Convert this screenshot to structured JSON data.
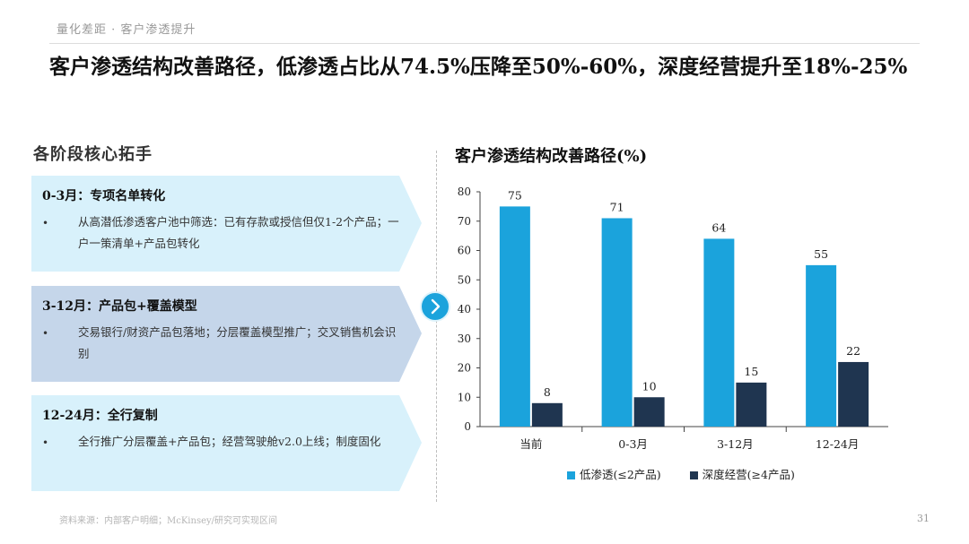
{
  "header": {
    "breadcrumb": "量化差距 · 客户渗透提升",
    "headline": "客户渗透结构改善路径，低渗透占比从74.5%压降至50%-60%，深度经营提升至18%-25%"
  },
  "left": {
    "section_title": "各阶段核心拓手",
    "bullet": "•",
    "stages": [
      {
        "title": "0-3月：专项名单转化",
        "text": "从高潜低渗透客户池中筛选：已有存款或授信但仅1-2个产品；一户一策清单+产品包转化",
        "color": "#d8f1fb"
      },
      {
        "title": "3-12月：产品包+覆盖模型",
        "text": "交易银行/财资产品包落地；分层覆盖模型推广；交叉销售机会识别",
        "color": "#c5d6ea"
      },
      {
        "title": "12-24月：全行复制",
        "text": "全行推广分层覆盖+产品包；经营驾驶舱v2.0上线；制度固化",
        "color": "#d8f1fb"
      }
    ]
  },
  "chart_data": {
    "type": "bar",
    "title": "客户渗透结构改善路径(%)",
    "categories": [
      "当前",
      "0-3月",
      "3-12月",
      "12-24月"
    ],
    "series": [
      {
        "name": "低渗透(≤2产品)",
        "values": [
          75,
          71,
          64,
          55
        ],
        "color": "#1ba3dc"
      },
      {
        "name": "深度经营(≥4产品)",
        "values": [
          8,
          10,
          15,
          22
        ],
        "color": "#1f3550"
      }
    ],
    "ylim": [
      0,
      80
    ],
    "yticks": [
      0,
      10,
      20,
      30,
      40,
      50,
      60,
      70,
      80
    ],
    "legend": "bottom",
    "grid": false
  },
  "footer": {
    "source": "资料来源：内部客户明细；McKinsey/研究可实现区间",
    "page": "31"
  },
  "icons": {
    "next": "chevron-right-icon"
  }
}
